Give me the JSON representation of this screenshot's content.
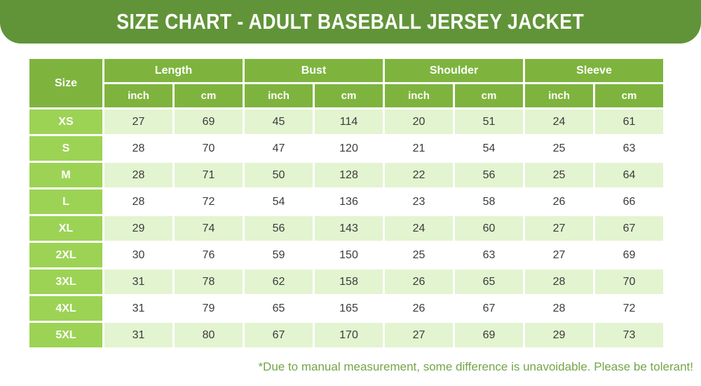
{
  "banner": {
    "title": "SIZE CHART - ADULT BASEBALL JERSEY JACKET"
  },
  "chart_data": {
    "type": "table",
    "title": "SIZE CHART - ADULT BASEBALL JERSEY JACKET",
    "size_column_header": "Size",
    "column_groups": [
      "Length",
      "Bust",
      "Shoulder",
      "Sleeve"
    ],
    "units": [
      "inch",
      "cm"
    ],
    "columns": [
      "Size",
      "Length (inch)",
      "Length (cm)",
      "Bust (inch)",
      "Bust (cm)",
      "Shoulder (inch)",
      "Shoulder (cm)",
      "Sleeve (inch)",
      "Sleeve (cm)"
    ],
    "rows": [
      {
        "size": "XS",
        "values": [
          27,
          69,
          45,
          114,
          20,
          51,
          24,
          61
        ]
      },
      {
        "size": "S",
        "values": [
          28,
          70,
          47,
          120,
          21,
          54,
          25,
          63
        ]
      },
      {
        "size": "M",
        "values": [
          28,
          71,
          50,
          128,
          22,
          56,
          25,
          64
        ]
      },
      {
        "size": "L",
        "values": [
          28,
          72,
          54,
          136,
          23,
          58,
          26,
          66
        ]
      },
      {
        "size": "XL",
        "values": [
          29,
          74,
          56,
          143,
          24,
          60,
          27,
          67
        ]
      },
      {
        "size": "2XL",
        "values": [
          30,
          76,
          59,
          150,
          25,
          63,
          27,
          69
        ]
      },
      {
        "size": "3XL",
        "values": [
          31,
          78,
          62,
          158,
          26,
          65,
          28,
          70
        ]
      },
      {
        "size": "4XL",
        "values": [
          31,
          79,
          65,
          165,
          26,
          67,
          28,
          72
        ]
      },
      {
        "size": "5XL",
        "values": [
          31,
          80,
          67,
          170,
          27,
          69,
          29,
          73
        ]
      }
    ]
  },
  "footer": {
    "note": "*Due to manual measurement, some difference is unavoidable. Please be tolerant!"
  },
  "colors": {
    "banner_green": "#619438",
    "header_green": "#7eb43e",
    "size_cell_green": "#9cd355",
    "row_stripe_green": "#e3f4d0",
    "note_green": "#72a647",
    "data_text": "#3b3b3b"
  }
}
